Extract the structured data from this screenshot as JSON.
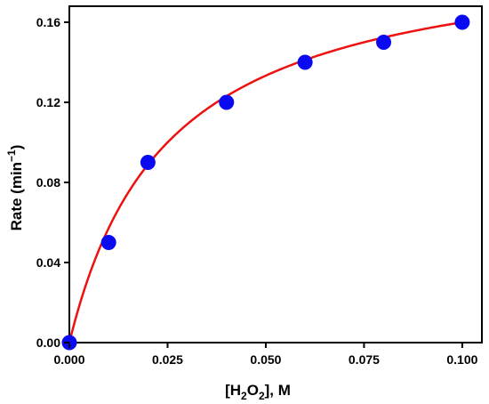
{
  "chart_data": {
    "type": "scatter",
    "xlabel": {
      "pre": "[H",
      "sub1": "2",
      "mid": "O",
      "sub2": "2",
      "post": "], M"
    },
    "ylabel": {
      "pre": "Rate (min",
      "sup": "−1",
      "post": ")"
    },
    "xlim": [
      0,
      0.105
    ],
    "ylim": [
      0,
      0.168
    ],
    "x_ticks": [
      0,
      0.025,
      0.05,
      0.075,
      0.1
    ],
    "x_tick_labels": [
      "0.000",
      "0.025",
      "0.050",
      "0.075",
      "0.100"
    ],
    "y_ticks": [
      0,
      0.04,
      0.08,
      0.12,
      0.16
    ],
    "y_tick_labels": [
      "0.00",
      "0.04",
      "0.08",
      "0.12",
      "0.16"
    ],
    "grid": false,
    "series": [
      {
        "type": "scatter",
        "color": "#0a0af0",
        "x": [
          0,
          0.01,
          0.02,
          0.04,
          0.06,
          0.08,
          0.1
        ],
        "y": [
          0,
          0.05,
          0.09,
          0.12,
          0.14,
          0.15,
          0.16
        ]
      },
      {
        "type": "line",
        "color": "#ee1111",
        "model": "Michaelis-Menten fit",
        "vmax": 0.2,
        "km": 0.025
      }
    ]
  }
}
